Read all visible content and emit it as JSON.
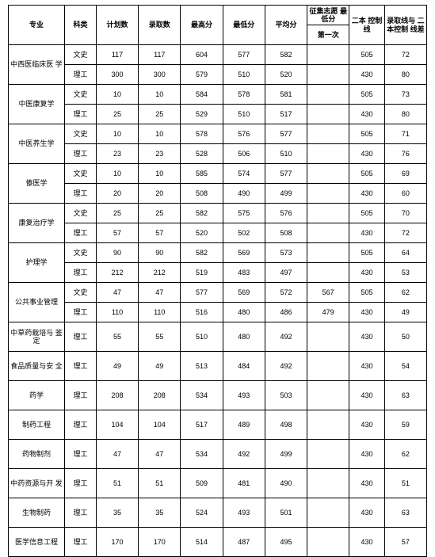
{
  "headers": {
    "major": "专业",
    "category": "科类",
    "plan": "计划数",
    "admit": "录取数",
    "max": "最高分",
    "min": "最低分",
    "avg": "平均分",
    "zj_group": "征集志愿\n最低分",
    "zj_first": "第一次",
    "ctrl": "二本\n控制线",
    "diff": "录取线与\n二本控制\n线差"
  },
  "majors": [
    {
      "name": "中西医临床医\n学",
      "rows": [
        {
          "cat": "文史",
          "plan": 117,
          "admit": 117,
          "max": 604,
          "min": 577,
          "avg": 582,
          "zj": "",
          "ctrl": 505,
          "diff": 72
        },
        {
          "cat": "理工",
          "plan": 300,
          "admit": 300,
          "max": 579,
          "min": 510,
          "avg": 520,
          "zj": "",
          "ctrl": 430,
          "diff": 80
        }
      ]
    },
    {
      "name": "中医康复学",
      "rows": [
        {
          "cat": "文史",
          "plan": 10,
          "admit": 10,
          "max": 584,
          "min": 578,
          "avg": 581,
          "zj": "",
          "ctrl": 505,
          "diff": 73
        },
        {
          "cat": "理工",
          "plan": 25,
          "admit": 25,
          "max": 529,
          "min": 510,
          "avg": 517,
          "zj": "",
          "ctrl": 430,
          "diff": 80
        }
      ]
    },
    {
      "name": "中医养生学",
      "rows": [
        {
          "cat": "文史",
          "plan": 10,
          "admit": 10,
          "max": 578,
          "min": 576,
          "avg": 577,
          "zj": "",
          "ctrl": 505,
          "diff": 71
        },
        {
          "cat": "理工",
          "plan": 23,
          "admit": 23,
          "max": 528,
          "min": 506,
          "avg": 510,
          "zj": "",
          "ctrl": 430,
          "diff": 76
        }
      ]
    },
    {
      "name": "傣医学",
      "rows": [
        {
          "cat": "文史",
          "plan": 10,
          "admit": 10,
          "max": 585,
          "min": 574,
          "avg": 577,
          "zj": "",
          "ctrl": 505,
          "diff": 69
        },
        {
          "cat": "理工",
          "plan": 20,
          "admit": 20,
          "max": 508,
          "min": 490,
          "avg": 499,
          "zj": "",
          "ctrl": 430,
          "diff": 60
        }
      ]
    },
    {
      "name": "康复治疗学",
      "rows": [
        {
          "cat": "文史",
          "plan": 25,
          "admit": 25,
          "max": 582,
          "min": 575,
          "avg": 576,
          "zj": "",
          "ctrl": 505,
          "diff": 70
        },
        {
          "cat": "理工",
          "plan": 57,
          "admit": 57,
          "max": 520,
          "min": 502,
          "avg": 508,
          "zj": "",
          "ctrl": 430,
          "diff": 72
        }
      ]
    },
    {
      "name": "护理学",
      "rows": [
        {
          "cat": "文史",
          "plan": 90,
          "admit": 90,
          "max": 582,
          "min": 569,
          "avg": 573,
          "zj": "",
          "ctrl": 505,
          "diff": 64
        },
        {
          "cat": "理工",
          "plan": 212,
          "admit": 212,
          "max": 519,
          "min": 483,
          "avg": 497,
          "zj": "",
          "ctrl": 430,
          "diff": 53
        }
      ]
    },
    {
      "name": "公共事业管理",
      "rows": [
        {
          "cat": "文史",
          "plan": 47,
          "admit": 47,
          "max": 577,
          "min": 569,
          "avg": 572,
          "zj": 567,
          "ctrl": 505,
          "diff": 62
        },
        {
          "cat": "理工",
          "plan": 110,
          "admit": 110,
          "max": 516,
          "min": 480,
          "avg": 486,
          "zj": 479,
          "ctrl": 430,
          "diff": 49
        }
      ]
    },
    {
      "name": "中草药栽培与\n鉴定",
      "rows": [
        {
          "cat": "理工",
          "plan": 55,
          "admit": 55,
          "max": 510,
          "min": 480,
          "avg": 492,
          "zj": "",
          "ctrl": 430,
          "diff": 50
        }
      ]
    },
    {
      "name": "食品质量与安\n全",
      "rows": [
        {
          "cat": "理工",
          "plan": 49,
          "admit": 49,
          "max": 513,
          "min": 484,
          "avg": 492,
          "zj": "",
          "ctrl": 430,
          "diff": 54
        }
      ]
    },
    {
      "name": "药学",
      "rows": [
        {
          "cat": "理工",
          "plan": 208,
          "admit": 208,
          "max": 534,
          "min": 493,
          "avg": 503,
          "zj": "",
          "ctrl": 430,
          "diff": 63
        }
      ]
    },
    {
      "name": "制药工程",
      "rows": [
        {
          "cat": "理工",
          "plan": 104,
          "admit": 104,
          "max": 517,
          "min": 489,
          "avg": 498,
          "zj": "",
          "ctrl": 430,
          "diff": 59
        }
      ]
    },
    {
      "name": "药物制剂",
      "rows": [
        {
          "cat": "理工",
          "plan": 47,
          "admit": 47,
          "max": 534,
          "min": 492,
          "avg": 499,
          "zj": "",
          "ctrl": 430,
          "diff": 62
        }
      ]
    },
    {
      "name": "中药资源与开\n发",
      "rows": [
        {
          "cat": "理工",
          "plan": 51,
          "admit": 51,
          "max": 509,
          "min": 481,
          "avg": 490,
          "zj": "",
          "ctrl": 430,
          "diff": 51
        }
      ]
    },
    {
      "name": "生物制药",
      "rows": [
        {
          "cat": "理工",
          "plan": 35,
          "admit": 35,
          "max": 524,
          "min": 493,
          "avg": 501,
          "zj": "",
          "ctrl": 430,
          "diff": 63
        }
      ]
    },
    {
      "name": "医学信息工程",
      "rows": [
        {
          "cat": "理工",
          "plan": 170,
          "admit": 170,
          "max": 514,
          "min": 487,
          "avg": 495,
          "zj": "",
          "ctrl": 430,
          "diff": 57
        }
      ]
    }
  ]
}
